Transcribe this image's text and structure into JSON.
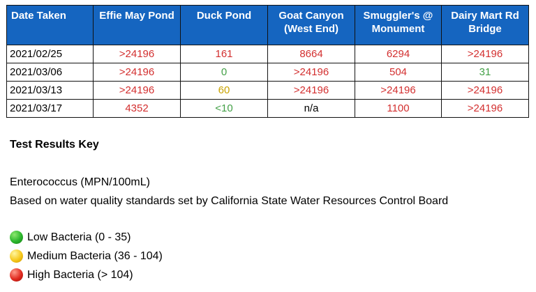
{
  "table": {
    "headers": [
      {
        "line1": "Date Taken",
        "line2": ""
      },
      {
        "line1": "Effie May Pond",
        "line2": ""
      },
      {
        "line1": "Duck Pond",
        "line2": ""
      },
      {
        "line1": "Goat Canyon",
        "line2": "(West End)"
      },
      {
        "line1": "Smuggler's @",
        "line2": "Monument"
      },
      {
        "line1": "Dairy Mart Rd",
        "line2": "Bridge"
      }
    ],
    "rows": [
      {
        "date": "2021/02/25",
        "cells": [
          {
            "value": ">24196",
            "level": "high"
          },
          {
            "value": "161",
            "level": "high"
          },
          {
            "value": "8664",
            "level": "high"
          },
          {
            "value": "6294",
            "level": "high"
          },
          {
            "value": ">24196",
            "level": "high"
          }
        ]
      },
      {
        "date": "2021/03/06",
        "cells": [
          {
            "value": ">24196",
            "level": "high"
          },
          {
            "value": "0",
            "level": "low"
          },
          {
            "value": ">24196",
            "level": "high"
          },
          {
            "value": "504",
            "level": "high"
          },
          {
            "value": "31",
            "level": "low"
          }
        ]
      },
      {
        "date": "2021/03/13",
        "cells": [
          {
            "value": ">24196",
            "level": "high"
          },
          {
            "value": "60",
            "level": "medium"
          },
          {
            "value": ">24196",
            "level": "high"
          },
          {
            "value": ">24196",
            "level": "high"
          },
          {
            "value": ">24196",
            "level": "high"
          }
        ]
      },
      {
        "date": "2021/03/17",
        "cells": [
          {
            "value": "4352",
            "level": "high"
          },
          {
            "value": "<10",
            "level": "low"
          },
          {
            "value": "n/a",
            "level": "none"
          },
          {
            "value": "1100",
            "level": "high"
          },
          {
            "value": ">24196",
            "level": "high"
          }
        ]
      }
    ]
  },
  "key": {
    "title": "Test Results Key",
    "unit_line": "Enterococcus (MPN/100mL)",
    "standards_line": "Based on water quality standards set by California State Water Resources Control Board",
    "legend": [
      {
        "label": "Low Bacteria (0 - 35)",
        "icon": "green-circle-icon",
        "color": "#2bb52b"
      },
      {
        "label": "Medium Bacteria (36 - 104)",
        "icon": "yellow-circle-icon",
        "color": "#f6c81b"
      },
      {
        "label": "High Bacteria (> 104)",
        "icon": "red-circle-icon",
        "color": "#e02a1f"
      }
    ]
  },
  "colors": {
    "header_bg": "#1565c0",
    "high": "#d32f2f",
    "medium": "#c9a300",
    "low": "#43a047"
  }
}
